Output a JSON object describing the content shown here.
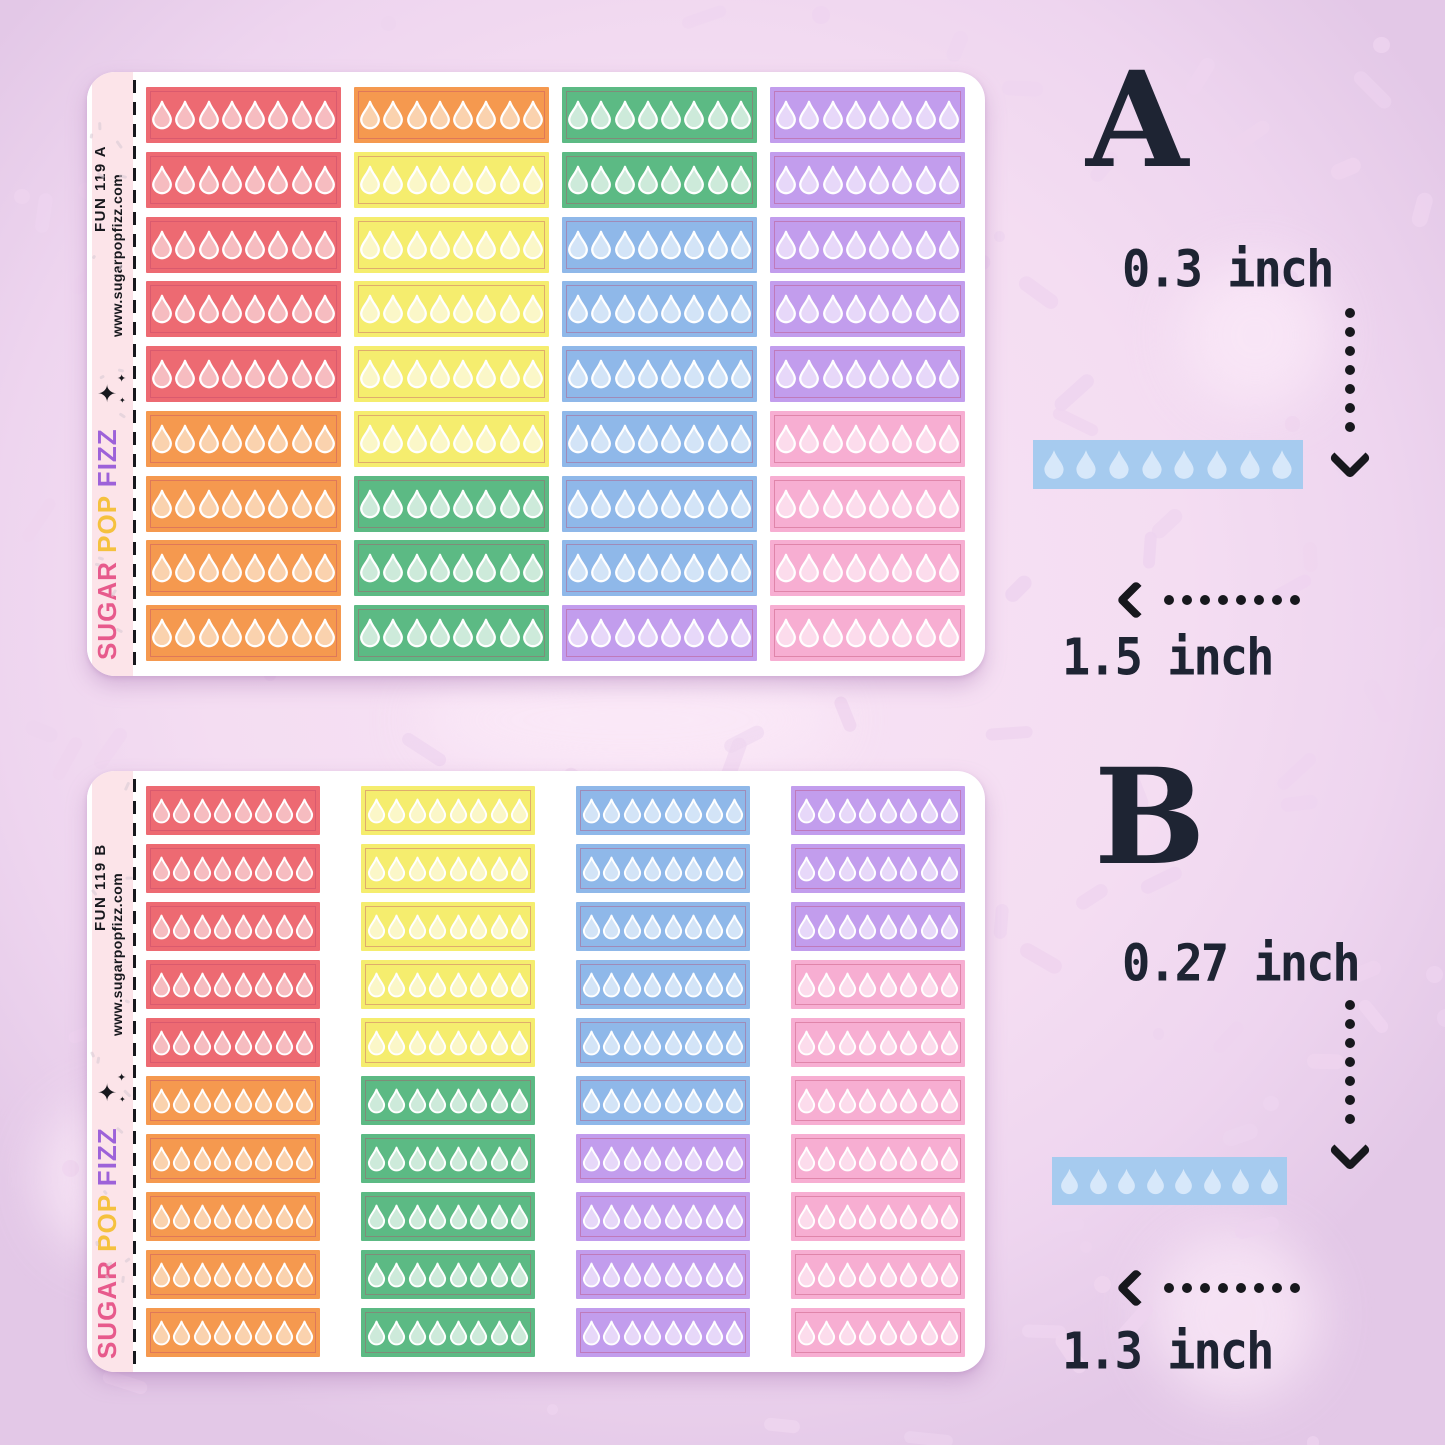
{
  "palette": {
    "red": {
      "bg": "#ed6a72",
      "drop": "#f6bcc0"
    },
    "orange": {
      "bg": "#f5994f",
      "drop": "#fad2ae"
    },
    "yellow": {
      "bg": "#f5ed6e",
      "drop": "#fbf7c8"
    },
    "green": {
      "bg": "#5cba84",
      "drop": "#cdeada"
    },
    "blue": {
      "bg": "#8fb8e9",
      "drop": "#d3e4f7"
    },
    "purple": {
      "bg": "#c29ded",
      "drop": "#e7d8f9"
    },
    "pink": {
      "bg": "#f7aed2",
      "drop": "#fcdcec"
    }
  },
  "sheets": [
    {
      "code": "FUN 119 A",
      "url": "www.sugarpopfizz.com",
      "sparkle": "✦",
      "brand": [
        {
          "text": "SUGAR",
          "color": "#e75a8c"
        },
        {
          "text": "POP",
          "color": "#f5c13e"
        },
        {
          "text": "FIZZ",
          "color": "#9d62d9"
        }
      ],
      "drops_per_strip": 8,
      "rows": [
        [
          "red",
          "orange",
          "green",
          "purple"
        ],
        [
          "red",
          "yellow",
          "green",
          "purple"
        ],
        [
          "red",
          "yellow",
          "blue",
          "purple"
        ],
        [
          "red",
          "yellow",
          "blue",
          "purple"
        ],
        [
          "red",
          "yellow",
          "blue",
          "purple"
        ],
        [
          "orange",
          "yellow",
          "blue",
          "pink"
        ],
        [
          "orange",
          "green",
          "blue",
          "pink"
        ],
        [
          "orange",
          "green",
          "blue",
          "pink"
        ],
        [
          "orange",
          "green",
          "purple",
          "pink"
        ]
      ]
    },
    {
      "code": "FUN 119 B",
      "url": "www.sugarpopfizz.com",
      "sparkle": "✦",
      "brand": [
        {
          "text": "SUGAR",
          "color": "#e75a8c"
        },
        {
          "text": "POP",
          "color": "#f5c13e"
        },
        {
          "text": "FIZZ",
          "color": "#9d62d9"
        }
      ],
      "drops_per_strip": 8,
      "rows": [
        [
          "red",
          "yellow",
          "blue",
          "purple"
        ],
        [
          "red",
          "yellow",
          "blue",
          "purple"
        ],
        [
          "red",
          "yellow",
          "blue",
          "purple"
        ],
        [
          "red",
          "yellow",
          "blue",
          "pink"
        ],
        [
          "red",
          "yellow",
          "blue",
          "pink"
        ],
        [
          "orange",
          "green",
          "blue",
          "pink"
        ],
        [
          "orange",
          "green",
          "purple",
          "pink"
        ],
        [
          "orange",
          "green",
          "purple",
          "pink"
        ],
        [
          "orange",
          "green",
          "purple",
          "pink"
        ],
        [
          "orange",
          "green",
          "purple",
          "pink"
        ]
      ]
    }
  ],
  "annotations": [
    {
      "letter": "A",
      "height_label": "0.3 inch",
      "width_label": "1.5 inch",
      "sample": {
        "bg": "#a6cbef",
        "drop": "#d7e8fa",
        "drops": 8
      }
    },
    {
      "letter": "B",
      "height_label": "0.27 inch",
      "width_label": "1.3 inch",
      "sample": {
        "bg": "#a6cbef",
        "drop": "#d7e8fa",
        "drops": 8
      }
    }
  ]
}
